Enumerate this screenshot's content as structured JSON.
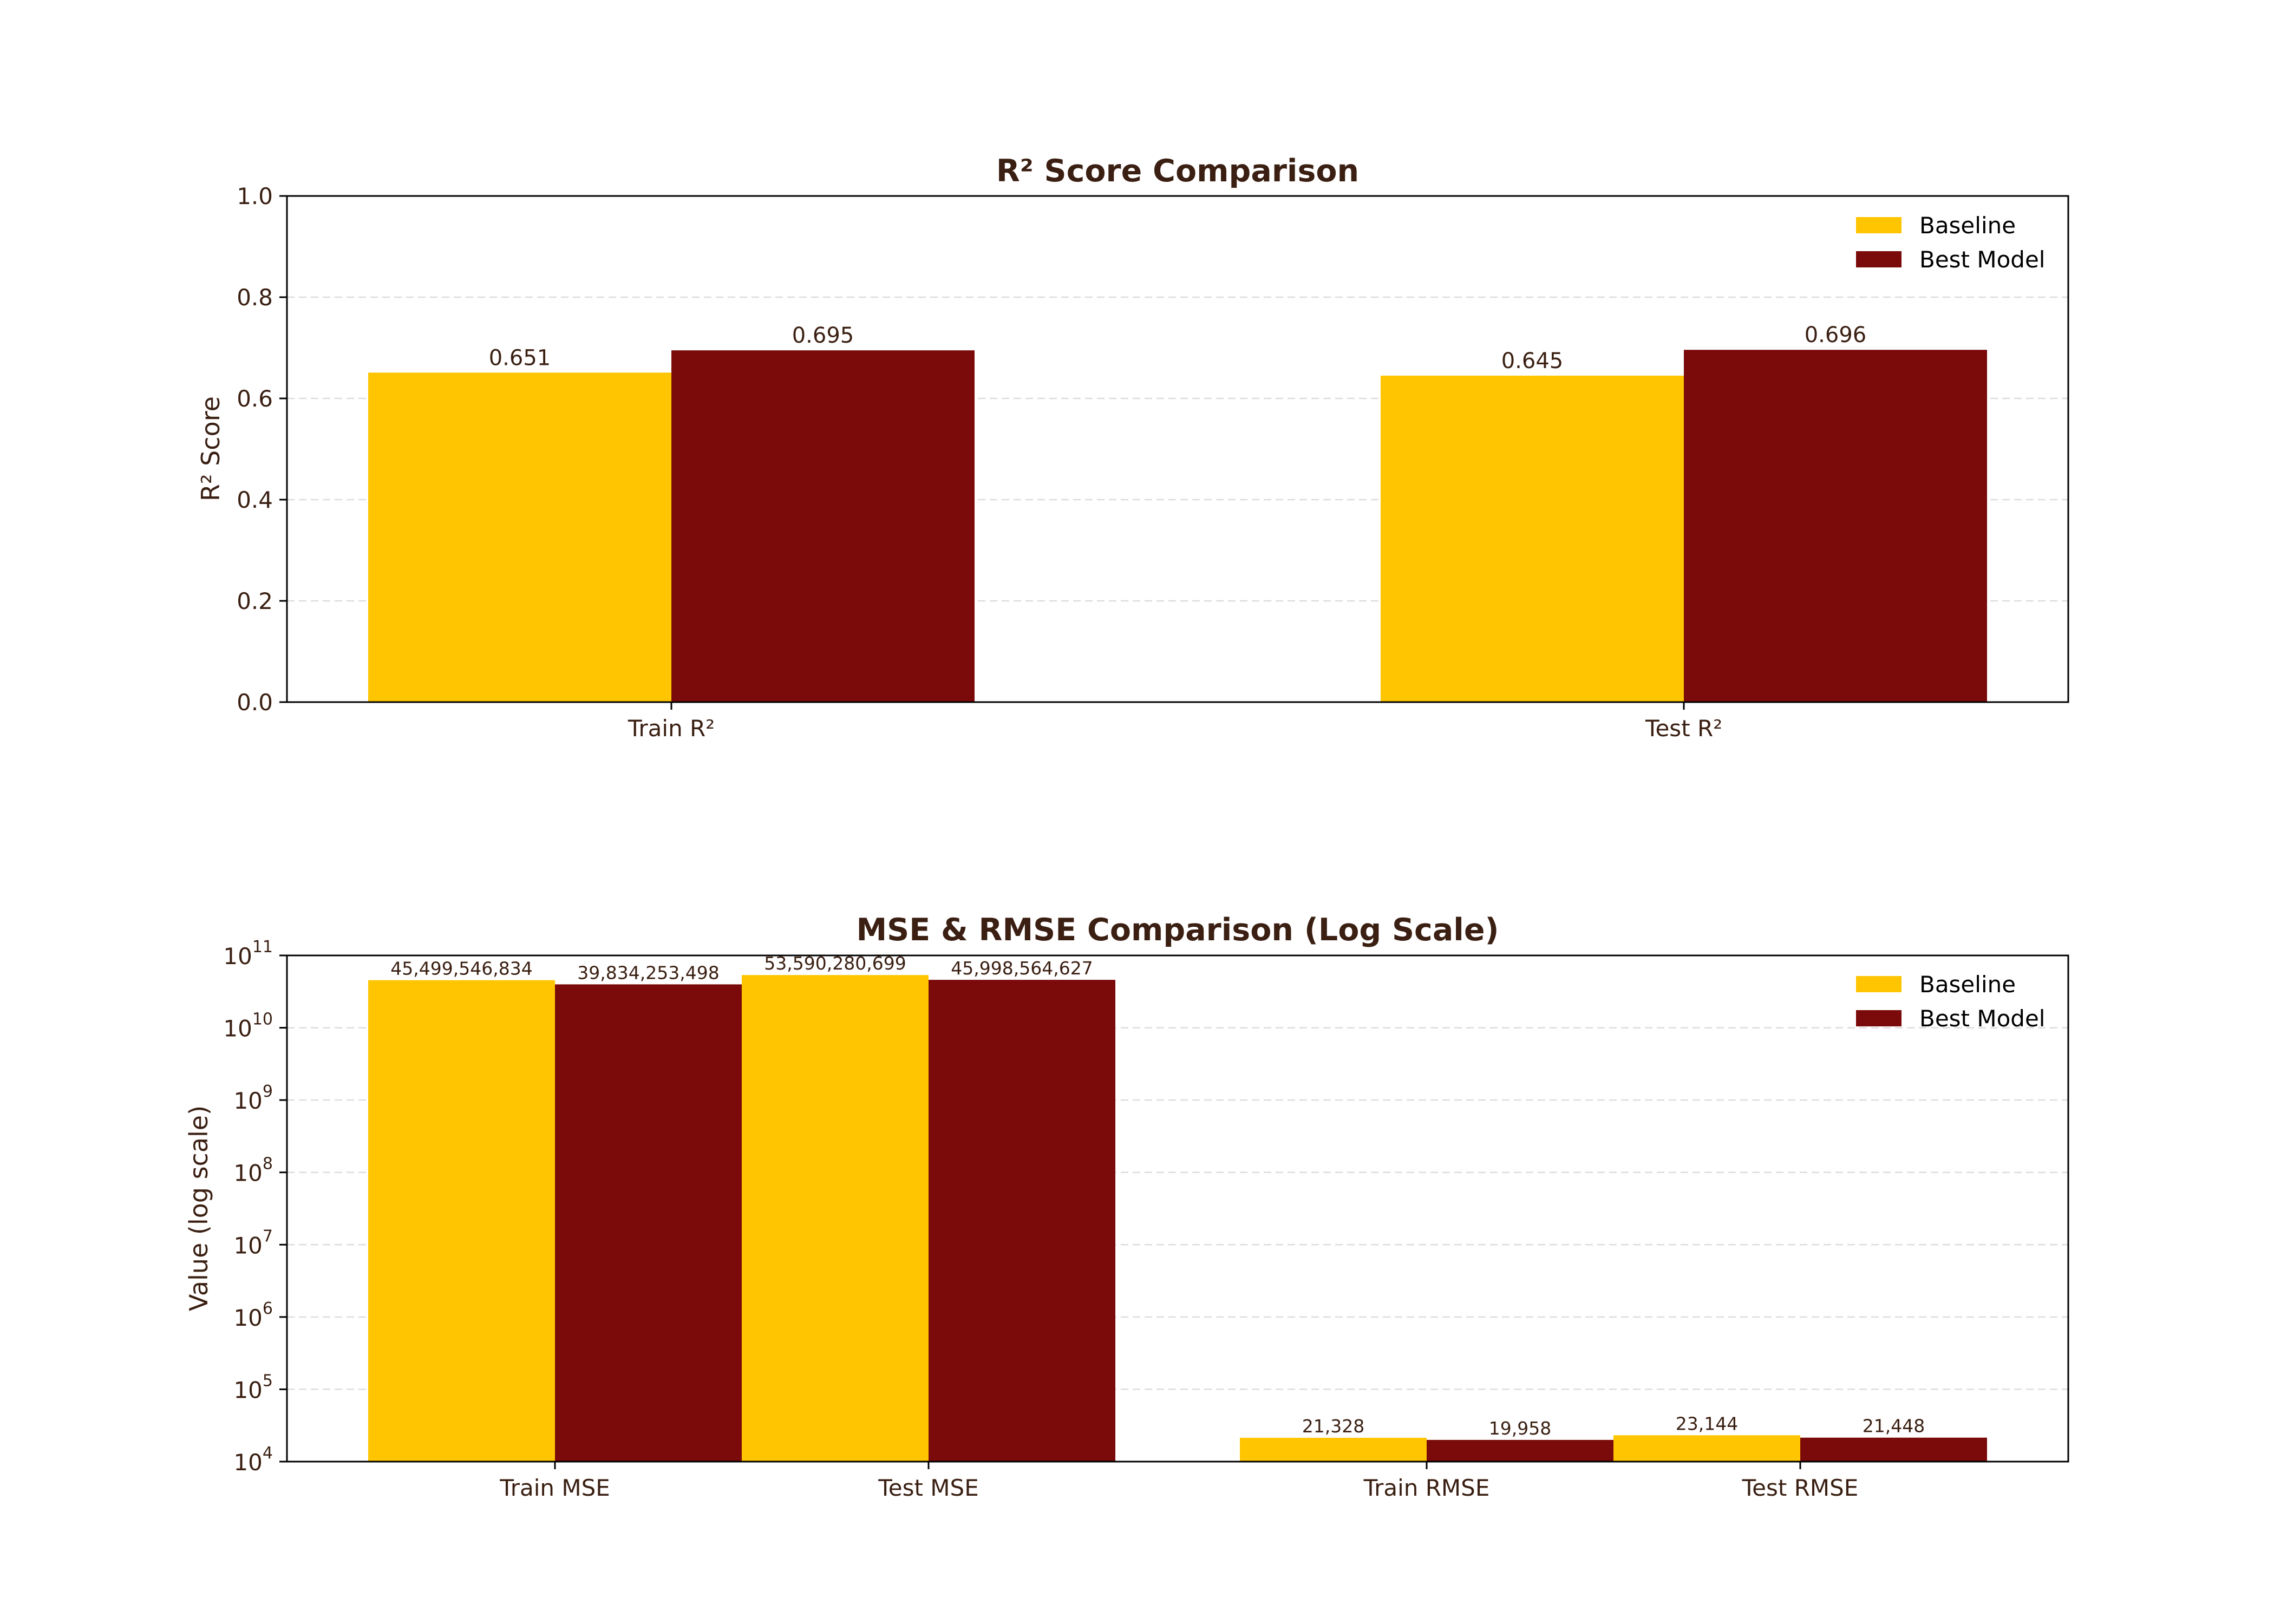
{
  "colors": {
    "baseline": "#FFC500",
    "best_model": "#7B0A0A",
    "text": "#3A1F12",
    "grid": "#DDDDDD",
    "axis": "#000000"
  },
  "chart_data": [
    {
      "type": "bar",
      "title": "R² Score Comparison",
      "xlabel": "",
      "ylabel": "R² Score",
      "yscale": "linear",
      "ylim": [
        0,
        1.0
      ],
      "yticks": [
        "0.0",
        "0.2",
        "0.4",
        "0.6",
        "0.8",
        "1.0"
      ],
      "grid": "y, dashed",
      "legend_position": "upper-right",
      "categories": [
        "Train R²",
        "Test R²"
      ],
      "series": [
        {
          "name": "Baseline",
          "values": [
            0.651,
            0.645
          ],
          "labels": [
            "0.651",
            "0.645"
          ]
        },
        {
          "name": "Best Model",
          "values": [
            0.695,
            0.696
          ],
          "labels": [
            "0.695",
            "0.696"
          ]
        }
      ]
    },
    {
      "type": "bar",
      "title": "MSE & RMSE Comparison (Log Scale)",
      "xlabel": "",
      "ylabel": "Value (log scale)",
      "yscale": "log",
      "ylim": [
        10000,
        100000000000
      ],
      "yticks": [
        {
          "base": "10",
          "exp": "4"
        },
        {
          "base": "10",
          "exp": "5"
        },
        {
          "base": "10",
          "exp": "6"
        },
        {
          "base": "10",
          "exp": "7"
        },
        {
          "base": "10",
          "exp": "8"
        },
        {
          "base": "10",
          "exp": "9"
        },
        {
          "base": "10",
          "exp": "10"
        },
        {
          "base": "10",
          "exp": "11"
        }
      ],
      "grid": "y, dashed",
      "legend_position": "upper-right",
      "categories": [
        "Train MSE",
        "Test MSE",
        "Train RMSE",
        "Test RMSE"
      ],
      "series": [
        {
          "name": "Baseline",
          "values": [
            45499546834,
            53590280699,
            21328,
            23144
          ],
          "labels": [
            "45,499,546,834",
            "53,590,280,699",
            "21,328",
            "23,144"
          ]
        },
        {
          "name": "Best Model",
          "values": [
            39834253498,
            45998564627,
            19958,
            21448
          ],
          "labels": [
            "39,834,253,498",
            "45,998,564,627",
            "19,958",
            "21,448"
          ]
        }
      ]
    }
  ]
}
